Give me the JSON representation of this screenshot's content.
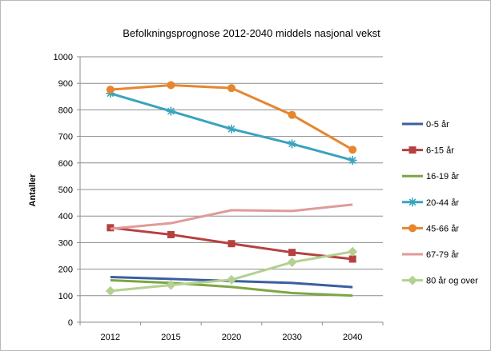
{
  "chart_data": {
    "type": "line",
    "title": "Befolkningsprognose 2012-2040 middels nasjonal vekst",
    "ylabel": "Antaller",
    "xlabel": "",
    "categories": [
      "2012",
      "2015",
      "2020",
      "2030",
      "2040"
    ],
    "yticks": [
      "0",
      "100",
      "200",
      "300",
      "400",
      "500",
      "600",
      "700",
      "800",
      "900",
      "1000"
    ],
    "ylim": [
      0,
      1000
    ],
    "grid": true,
    "legend_position": "right",
    "series": [
      {
        "name": "0-5 år",
        "color": "#3a5fa0",
        "marker": "none",
        "values": [
          170,
          163,
          155,
          148,
          132
        ]
      },
      {
        "name": "6-15 år",
        "color": "#b5413f",
        "marker": "square",
        "values": [
          356,
          330,
          296,
          263,
          238
        ]
      },
      {
        "name": "16-19 år",
        "color": "#7da645",
        "marker": "none",
        "values": [
          158,
          148,
          133,
          110,
          100
        ]
      },
      {
        "name": "20-44 år",
        "color": "#3aa3bd",
        "marker": "asterisk",
        "values": [
          862,
          795,
          728,
          672,
          610
        ]
      },
      {
        "name": "45-66 år",
        "color": "#e6862f",
        "marker": "circle",
        "values": [
          876,
          893,
          882,
          781,
          650
        ]
      },
      {
        "name": "67-79 år",
        "color": "#df9b9a",
        "marker": "none",
        "values": [
          352,
          373,
          422,
          419,
          443
        ]
      },
      {
        "name": "80 år og over",
        "color": "#b3d190",
        "marker": "diamond",
        "values": [
          118,
          140,
          160,
          226,
          266
        ]
      }
    ]
  }
}
